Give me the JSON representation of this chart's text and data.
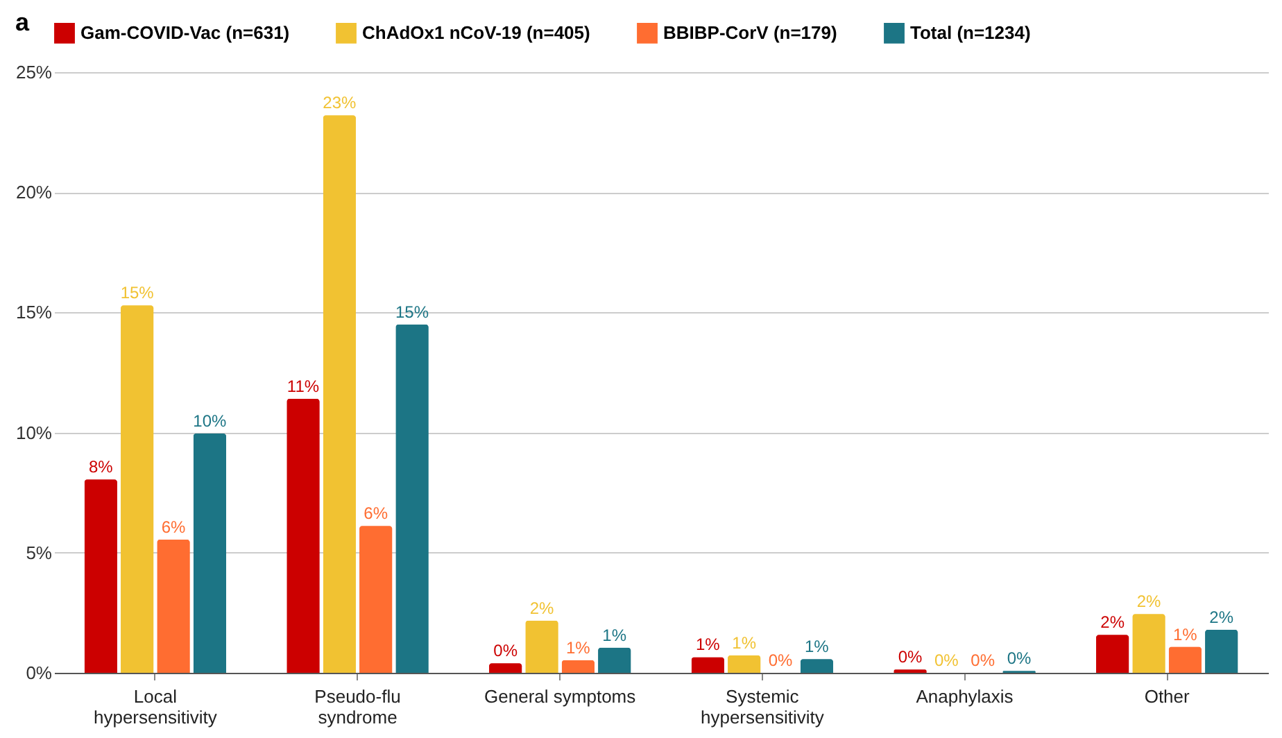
{
  "chart_data": {
    "type": "bar",
    "title": "a",
    "categories": [
      "Local hypersensitivity",
      "Pseudo-flu syndrome",
      "General symptoms",
      "Systemic hypersensitivity",
      "Anaphylaxis",
      "Other"
    ],
    "series": [
      {
        "name": "Gam-COVID-Vac (n=631)",
        "color": "#cc0000",
        "values": [
          8.05,
          11.4,
          0.4,
          0.65,
          0.14,
          1.58
        ],
        "value_labels": [
          "8%",
          "11%",
          "0%",
          "1%",
          "0%",
          "2%"
        ]
      },
      {
        "name": "ChAdOx1 nCoV-19 (n=405)",
        "color": "#f1c232",
        "values": [
          15.29,
          23.2,
          2.17,
          0.73,
          0,
          2.45
        ],
        "value_labels": [
          "15%",
          "23%",
          "2%",
          "1%",
          "0%",
          "2%"
        ]
      },
      {
        "name": "BBIBP-CorV (n=179)",
        "color": "#ff6d31",
        "values": [
          5.54,
          6.11,
          0.53,
          0,
          0,
          1.08
        ],
        "value_labels": [
          "6%",
          "6%",
          "1%",
          "0%",
          "0%",
          "1%"
        ]
      },
      {
        "name": "Total (n=1234)",
        "color": "#1c7585",
        "values": [
          9.96,
          14.5,
          1.05,
          0.57,
          0.08,
          1.79
        ],
        "value_labels": [
          "10%",
          "15%",
          "1%",
          "1%",
          "0%",
          "2%"
        ]
      }
    ],
    "ylim": [
      0,
      25
    ],
    "yticks": [
      {
        "value": 0,
        "label": "0%"
      },
      {
        "value": 5,
        "label": "5%"
      },
      {
        "value": 10,
        "label": "10%"
      },
      {
        "value": 15,
        "label": "15%"
      },
      {
        "value": 20,
        "label": "20%"
      },
      {
        "value": 25,
        "label": "25%"
      }
    ],
    "grid": "y",
    "legend": "top"
  }
}
